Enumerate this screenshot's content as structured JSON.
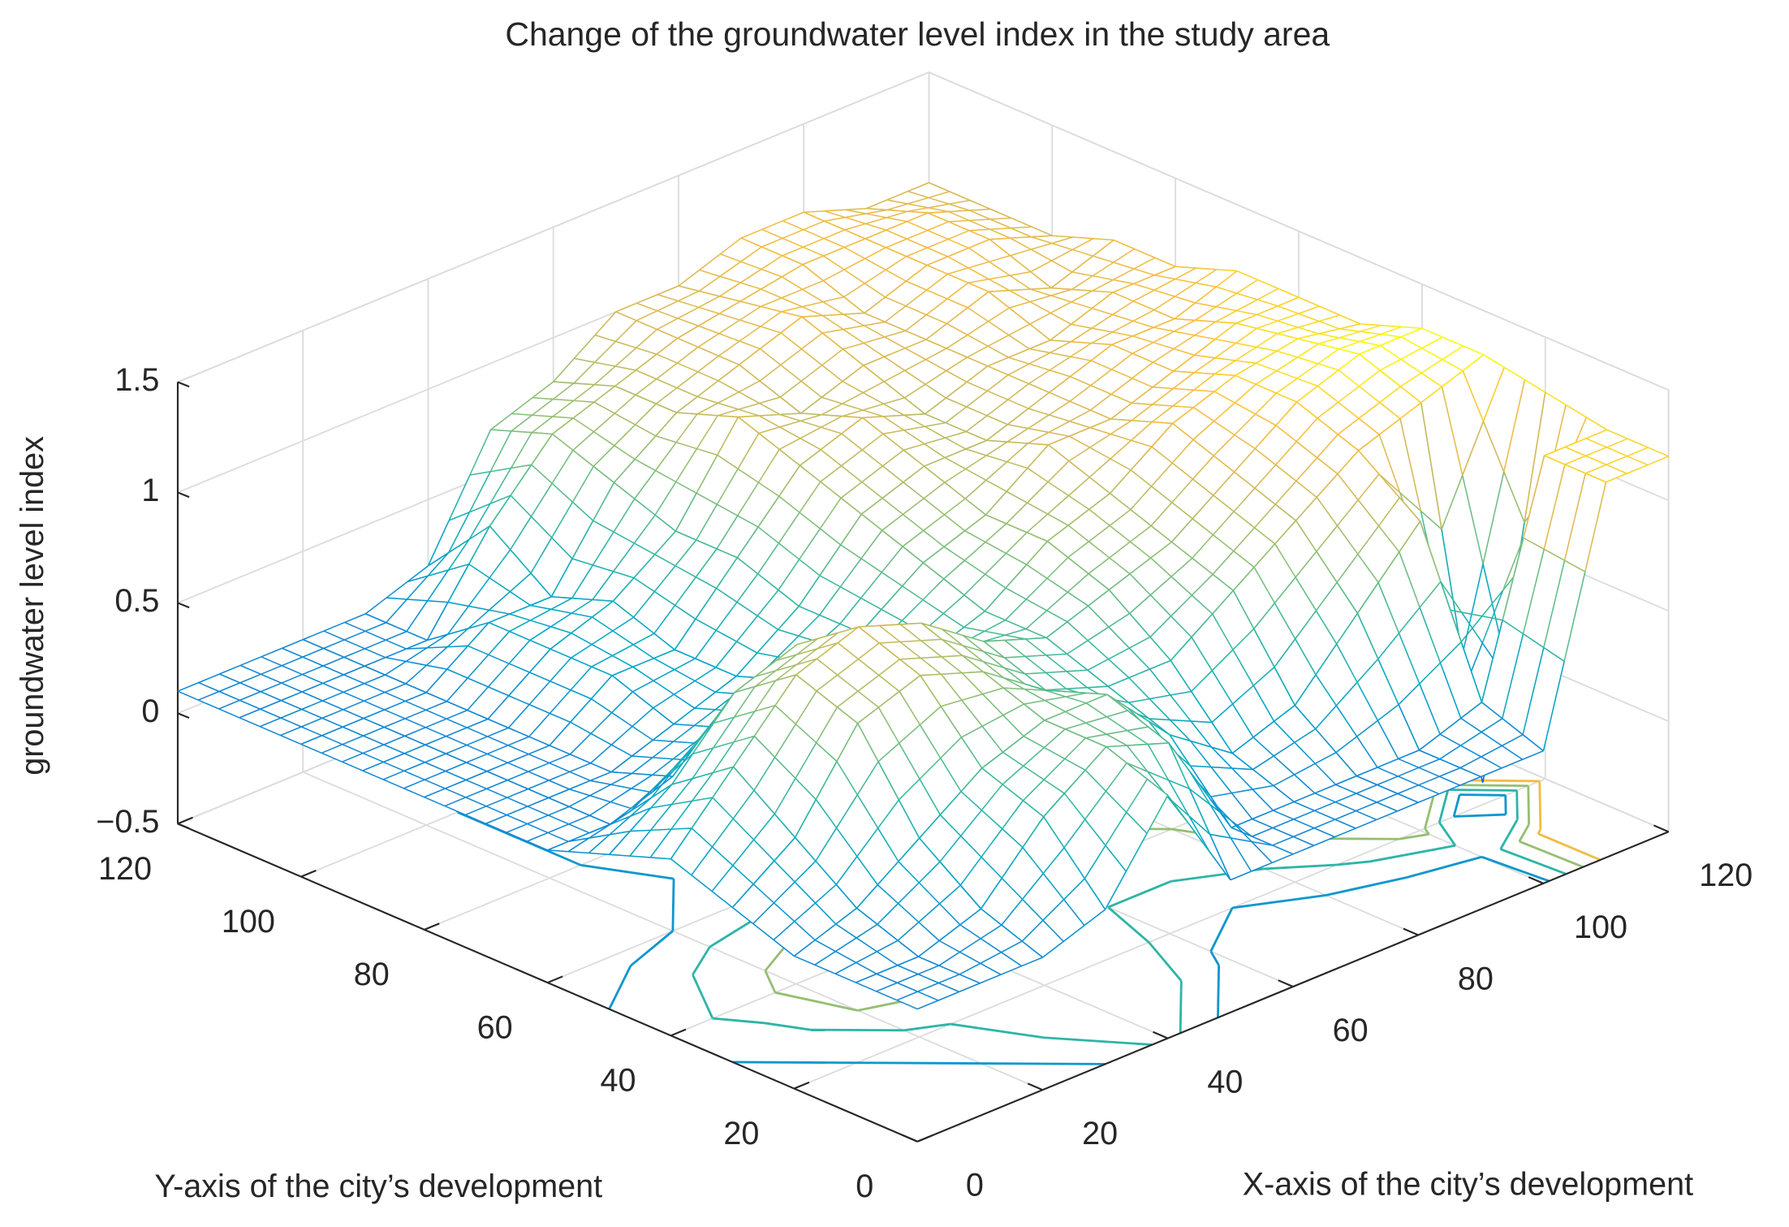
{
  "chart_data": {
    "type": "mesh",
    "title": "Change of the groundwater level index in the study area",
    "xlabel": "X-axis of the city’s development",
    "ylabel": "Y-axis of the city’s development",
    "zlabel": "groundwater level index",
    "x": [
      0,
      10,
      20,
      30,
      40,
      50,
      60,
      70,
      80,
      90,
      100,
      110,
      120
    ],
    "y": [
      0,
      10,
      20,
      30,
      40,
      50,
      60,
      70,
      80,
      90,
      100,
      110,
      120
    ],
    "z": [
      [
        0.1,
        0.1,
        0.1,
        0.2,
        0.6,
        0.1,
        0.1,
        0.1,
        0.1,
        0.1,
        0.1,
        1.2,
        1.2
      ],
      [
        0.1,
        0.1,
        0.2,
        0.5,
        0.7,
        0.6,
        0.1,
        0.1,
        0.1,
        0.1,
        0.2,
        1.2,
        1.2
      ],
      [
        0.1,
        0.2,
        0.4,
        0.6,
        0.7,
        0.7,
        0.4,
        0.2,
        0.3,
        0.6,
        0.9,
        -0.4,
        1.25
      ],
      [
        0.2,
        0.4,
        0.8,
        0.9,
        0.8,
        0.6,
        0.5,
        0.5,
        0.7,
        0.9,
        1.1,
        1.2,
        1.3
      ],
      [
        0.3,
        0.6,
        0.9,
        1.0,
        0.9,
        0.7,
        0.6,
        0.7,
        0.8,
        1.0,
        1.2,
        1.3,
        1.3
      ],
      [
        0.2,
        0.4,
        0.7,
        0.8,
        0.6,
        0.5,
        0.6,
        0.8,
        0.9,
        1.1,
        1.2,
        1.25,
        1.2
      ],
      [
        0.1,
        0.1,
        0.2,
        0.3,
        0.4,
        0.5,
        0.7,
        0.8,
        1.0,
        1.0,
        1.1,
        1.2,
        1.2
      ],
      [
        0.1,
        0.1,
        0.1,
        0.2,
        0.3,
        0.5,
        0.8,
        0.9,
        0.9,
        1.0,
        1.1,
        1.1,
        1.2
      ],
      [
        0.1,
        0.1,
        0.1,
        0.3,
        0.3,
        0.6,
        0.9,
        1.0,
        0.9,
        1.0,
        1.0,
        1.1,
        1.1
      ],
      [
        0.1,
        0.1,
        0.1,
        0.3,
        0.4,
        0.6,
        1.0,
        0.9,
        1.0,
        1.0,
        1.1,
        1.0,
        1.1
      ],
      [
        0.1,
        0.1,
        0.1,
        0.3,
        0.3,
        0.7,
        0.9,
        1.0,
        1.1,
        1.0,
        1.1,
        1.1,
        1.0
      ],
      [
        0.1,
        0.1,
        0.1,
        0.1,
        0.5,
        0.8,
        0.9,
        1.0,
        1.05,
        1.1,
        1.1,
        1.1,
        1.0
      ],
      [
        0.1,
        0.1,
        0.1,
        0.1,
        0.2,
        0.7,
        0.8,
        1.0,
        1.0,
        1.1,
        1.1,
        1.0,
        1.0
      ]
    ],
    "contour_levels": [
      0.2,
      0.5,
      0.8,
      1.1
    ],
    "xlim": [
      0,
      120
    ],
    "ylim": [
      0,
      120
    ],
    "zlim": [
      -0.5,
      1.5
    ],
    "xticks": [
      0,
      20,
      40,
      60,
      80,
      100,
      120
    ],
    "yticks": [
      0,
      20,
      40,
      60,
      80,
      100,
      120
    ],
    "zticks": [
      {
        "value": -0.5,
        "label": "−0.5"
      },
      0,
      0.5,
      1,
      1.5
    ],
    "grid": true
  }
}
